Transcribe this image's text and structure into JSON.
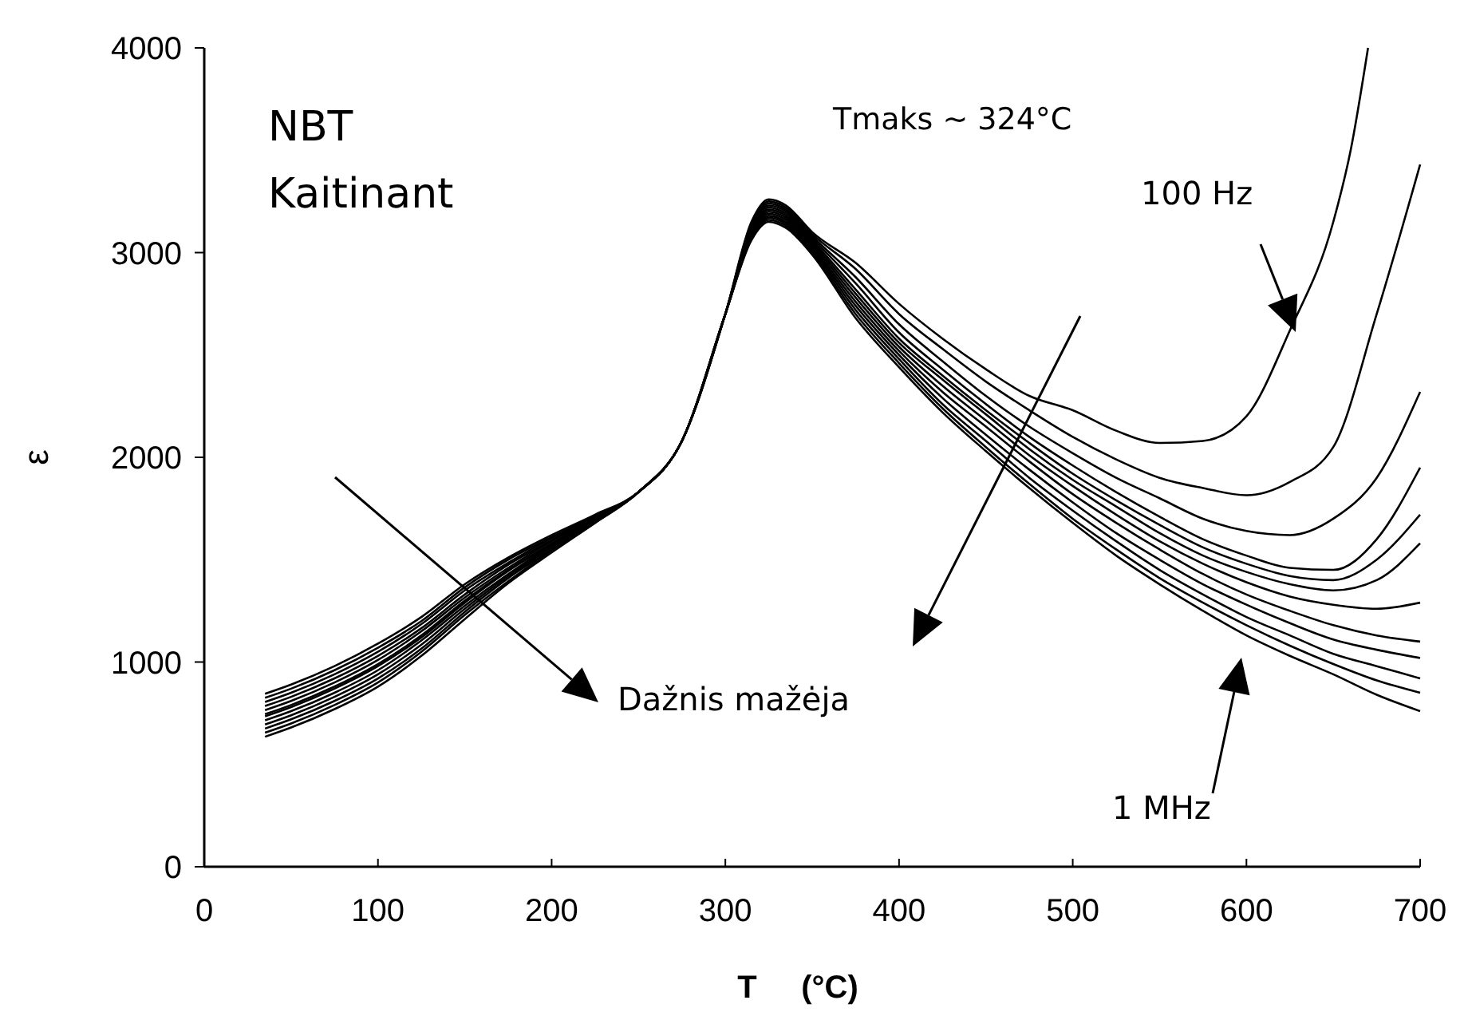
{
  "chart_data": {
    "type": "line",
    "xlabel": "T     (°C)",
    "ylabel": "ε",
    "xlim": [
      0,
      700
    ],
    "xticks": [
      0,
      100,
      200,
      300,
      400,
      500,
      600,
      700
    ],
    "ylim": [
      0,
      4000
    ],
    "yticks": [
      0,
      1000,
      2000,
      3000,
      4000
    ],
    "line_style": "solid",
    "annotations": [
      "NBT",
      "Kaitinant",
      "Tmaks  ~ 324°C",
      "100 Hz",
      "1 MHz",
      "Dažnis mažėja"
    ],
    "x": [
      35,
      50,
      75,
      100,
      125,
      150,
      175,
      200,
      225,
      250,
      275,
      300,
      315,
      325,
      335,
      350,
      375,
      400,
      425,
      450,
      475,
      500,
      525,
      550,
      575,
      600,
      625,
      650,
      675,
      700
    ],
    "series": [
      {
        "color": "#000000",
        "x": [
          35,
          50,
          75,
          100,
          125,
          150,
          175,
          200,
          225,
          250,
          275,
          300,
          315,
          325,
          335,
          350,
          375,
          400,
          425,
          450,
          475,
          500,
          525,
          550,
          575,
          600,
          625,
          650,
          660,
          670
        ],
        "values": [
          845,
          890,
          980,
          1090,
          1220,
          1380,
          1510,
          1620,
          1720,
          1830,
          2080,
          2700,
          3150,
          3260,
          3230,
          3100,
          2950,
          2750,
          2580,
          2430,
          2300,
          2230,
          2130,
          2070,
          2080,
          2200,
          2620,
          3150,
          3500,
          4000
        ]
      },
      {
        "color": "#000000",
        "values": [
          825,
          870,
          960,
          1070,
          1200,
          1365,
          1500,
          1610,
          1715,
          1830,
          2080,
          2700,
          3140,
          3250,
          3220,
          3090,
          2920,
          2700,
          2530,
          2370,
          2230,
          2100,
          1990,
          1900,
          1850,
          1815,
          1880,
          2050,
          2700,
          3430
        ]
      },
      {
        "color": "#000000",
        "values": [
          805,
          850,
          940,
          1050,
          1185,
          1350,
          1485,
          1605,
          1710,
          1830,
          2080,
          2700,
          3130,
          3240,
          3210,
          3080,
          2880,
          2650,
          2470,
          2300,
          2150,
          2020,
          1900,
          1800,
          1700,
          1640,
          1620,
          1700,
          1900,
          2320
        ]
      },
      {
        "color": "#000000",
        "values": [
          785,
          830,
          920,
          1030,
          1165,
          1330,
          1475,
          1595,
          1710,
          1830,
          2080,
          2700,
          3120,
          3230,
          3200,
          3070,
          2850,
          2610,
          2430,
          2260,
          2100,
          1960,
          1830,
          1710,
          1600,
          1520,
          1460,
          1450,
          1600,
          1950
        ]
      },
      {
        "color": "#000000",
        "values": [
          765,
          810,
          900,
          1010,
          1150,
          1315,
          1460,
          1590,
          1705,
          1830,
          2080,
          2700,
          3110,
          3220,
          3190,
          3060,
          2820,
          2580,
          2400,
          2230,
          2070,
          1920,
          1790,
          1670,
          1560,
          1480,
          1420,
          1400,
          1500,
          1720
        ]
      },
      {
        "color": "#000000",
        "values": [
          745,
          790,
          880,
          990,
          1130,
          1300,
          1450,
          1580,
          1700,
          1830,
          2080,
          2700,
          3100,
          3210,
          3180,
          3050,
          2800,
          2560,
          2380,
          2210,
          2040,
          1890,
          1760,
          1630,
          1520,
          1440,
          1380,
          1350,
          1400,
          1580
        ]
      },
      {
        "color": "#000000",
        "values": [
          735,
          780,
          870,
          980,
          1120,
          1290,
          1445,
          1575,
          1700,
          1830,
          2080,
          2700,
          3090,
          3200,
          3170,
          3040,
          2780,
          2540,
          2350,
          2180,
          2010,
          1860,
          1720,
          1590,
          1480,
          1390,
          1320,
          1280,
          1260,
          1290
        ]
      },
      {
        "color": "#000000",
        "values": [
          715,
          760,
          850,
          960,
          1105,
          1275,
          1430,
          1570,
          1695,
          1830,
          2080,
          2700,
          3090,
          3190,
          3160,
          3030,
          2760,
          2520,
          2320,
          2150,
          1980,
          1820,
          1680,
          1550,
          1430,
          1330,
          1250,
          1180,
          1130,
          1100
        ]
      },
      {
        "color": "#000000",
        "values": [
          695,
          740,
          830,
          940,
          1085,
          1260,
          1420,
          1560,
          1690,
          1830,
          2080,
          2700,
          3080,
          3180,
          3150,
          3020,
          2740,
          2500,
          2290,
          2110,
          1940,
          1780,
          1630,
          1500,
          1380,
          1280,
          1190,
          1110,
          1060,
          1020
        ]
      },
      {
        "color": "#000000",
        "values": [
          675,
          720,
          810,
          920,
          1065,
          1245,
          1410,
          1550,
          1685,
          1830,
          2080,
          2700,
          3070,
          3170,
          3140,
          3010,
          2720,
          2480,
          2260,
          2080,
          1900,
          1740,
          1590,
          1450,
          1330,
          1220,
          1130,
          1040,
          980,
          920
        ]
      },
      {
        "color": "#000000",
        "values": [
          655,
          700,
          790,
          900,
          1050,
          1230,
          1395,
          1545,
          1680,
          1830,
          2080,
          2700,
          3070,
          3160,
          3130,
          3000,
          2700,
          2460,
          2240,
          2050,
          1870,
          1700,
          1550,
          1410,
          1290,
          1180,
          1080,
          990,
          910,
          850
        ]
      },
      {
        "color": "#000000",
        "values": [
          635,
          680,
          770,
          880,
          1030,
          1210,
          1385,
          1535,
          1680,
          1830,
          2080,
          2700,
          3060,
          3150,
          3120,
          2990,
          2680,
          2440,
          2220,
          2030,
          1850,
          1680,
          1520,
          1380,
          1250,
          1130,
          1030,
          940,
          840,
          760
        ]
      }
    ]
  }
}
